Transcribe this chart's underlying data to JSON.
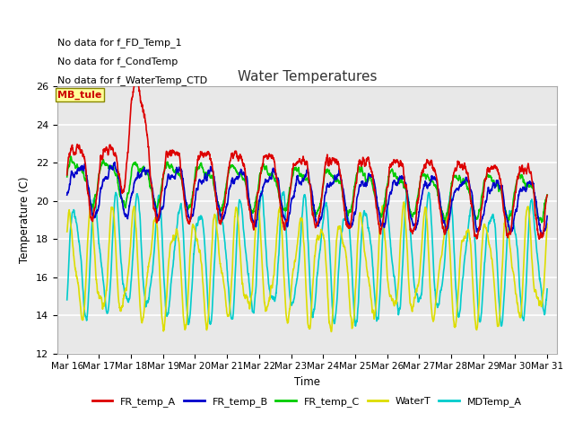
{
  "title": "Water Temperatures",
  "ylabel": "Temperature (C)",
  "xlabel": "Time",
  "ylim": [
    12,
    26
  ],
  "yticks": [
    12,
    14,
    16,
    18,
    20,
    22,
    24,
    26
  ],
  "annotations": [
    "No data for f_FD_Temp_1",
    "No data for f_CondTemp",
    "No data for f_WaterTemp_CTD"
  ],
  "mb_tule_label": "MB_tule",
  "series": {
    "FR_temp_A": {
      "color": "#dd0000",
      "lw": 1.2
    },
    "FR_temp_B": {
      "color": "#0000cc",
      "lw": 1.2
    },
    "FR_temp_C": {
      "color": "#00cc00",
      "lw": 1.2
    },
    "WaterT": {
      "color": "#dddd00",
      "lw": 1.2
    },
    "MDTemp_A": {
      "color": "#00cccc",
      "lw": 1.2
    }
  },
  "x_tick_labels": [
    "Mar 16",
    "Mar 17",
    "Mar 18",
    "Mar 19",
    "Mar 20",
    "Mar 21",
    "Mar 22",
    "Mar 23",
    "Mar 24",
    "Mar 25",
    "Mar 26",
    "Mar 27",
    "Mar 28",
    "Mar 29",
    "Mar 30",
    "Mar 31"
  ],
  "x_tick_positions": [
    0,
    1,
    2,
    3,
    4,
    5,
    6,
    7,
    8,
    9,
    10,
    11,
    12,
    13,
    14,
    15
  ],
  "num_points": 2400
}
